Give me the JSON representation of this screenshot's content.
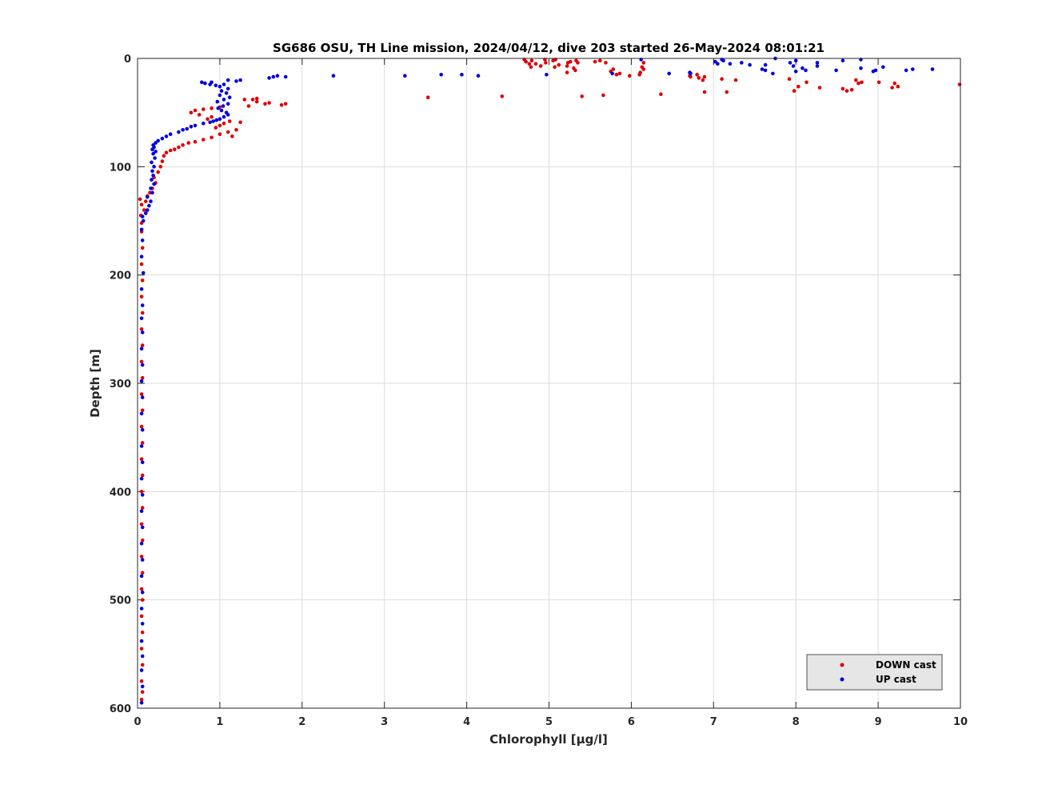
{
  "chart_data": {
    "type": "scatter",
    "title": "SG686 OSU, TH Line mission, 2024/04/12, dive 203 started 26-May-2024 08:01:21",
    "xlabel": "Chlorophyll [μg/l]",
    "ylabel": "Depth [m]",
    "xlim": [
      0,
      10
    ],
    "ylim": [
      0,
      600
    ],
    "y_reversed": true,
    "x_ticks": [
      0,
      1,
      2,
      3,
      4,
      5,
      6,
      7,
      8,
      9,
      10
    ],
    "y_ticks": [
      0,
      100,
      200,
      300,
      400,
      500,
      600
    ],
    "grid": true,
    "legend_position": "bottom-right",
    "series": [
      {
        "name": "DOWN cast",
        "color": "#e00000",
        "points": [
          [
            0.05,
            592
          ],
          [
            0.06,
            585
          ],
          [
            0.05,
            575
          ],
          [
            0.06,
            560
          ],
          [
            0.05,
            545
          ],
          [
            0.06,
            530
          ],
          [
            0.05,
            515
          ],
          [
            0.06,
            500
          ],
          [
            0.05,
            490
          ],
          [
            0.06,
            475
          ],
          [
            0.05,
            460
          ],
          [
            0.06,
            445
          ],
          [
            0.05,
            430
          ],
          [
            0.06,
            415
          ],
          [
            0.05,
            400
          ],
          [
            0.06,
            385
          ],
          [
            0.05,
            370
          ],
          [
            0.06,
            355
          ],
          [
            0.05,
            340
          ],
          [
            0.06,
            325
          ],
          [
            0.05,
            310
          ],
          [
            0.06,
            295
          ],
          [
            0.05,
            280
          ],
          [
            0.06,
            265
          ],
          [
            0.05,
            250
          ],
          [
            0.06,
            235
          ],
          [
            0.05,
            220
          ],
          [
            0.06,
            205
          ],
          [
            0.05,
            190
          ],
          [
            0.06,
            175
          ],
          [
            0.05,
            160
          ],
          [
            0.05,
            152
          ],
          [
            0.04,
            145
          ],
          [
            0.08,
            140
          ],
          [
            0.05,
            135
          ],
          [
            0.1,
            132
          ],
          [
            0.03,
            130
          ],
          [
            0.12,
            127
          ],
          [
            0.15,
            124
          ],
          [
            0.18,
            120
          ],
          [
            0.22,
            115
          ],
          [
            0.2,
            110
          ],
          [
            0.25,
            105
          ],
          [
            0.28,
            100
          ],
          [
            0.3,
            95
          ],
          [
            0.32,
            90
          ],
          [
            0.35,
            87
          ],
          [
            0.4,
            85
          ],
          [
            0.45,
            84
          ],
          [
            0.5,
            82
          ],
          [
            0.55,
            80
          ],
          [
            0.62,
            78
          ],
          [
            0.7,
            77
          ],
          [
            0.8,
            75
          ],
          [
            0.9,
            73
          ],
          [
            1.0,
            70
          ],
          [
            1.1,
            68
          ],
          [
            1.15,
            72
          ],
          [
            1.2,
            66
          ],
          [
            0.95,
            64
          ],
          [
            1.0,
            62
          ],
          [
            1.05,
            60
          ],
          [
            1.12,
            58
          ],
          [
            1.25,
            59
          ],
          [
            0.85,
            56
          ],
          [
            0.9,
            54
          ],
          [
            0.75,
            52
          ],
          [
            0.65,
            50
          ],
          [
            0.7,
            48
          ],
          [
            0.8,
            47
          ],
          [
            0.9,
            46
          ],
          [
            1.0,
            45
          ],
          [
            1.35,
            44
          ],
          [
            1.55,
            42
          ],
          [
            1.8,
            42
          ],
          [
            1.75,
            43
          ],
          [
            1.45,
            40
          ],
          [
            1.4,
            38
          ],
          [
            1.45,
            37
          ],
          [
            1.6,
            41
          ],
          [
            1.3,
            38
          ],
          [
            3.53,
            36
          ],
          [
            4.43,
            35
          ],
          [
            5.4,
            35
          ],
          [
            5.66,
            34
          ],
          [
            6.36,
            33
          ],
          [
            6.89,
            31
          ],
          [
            7.16,
            31
          ],
          [
            7.98,
            30
          ],
          [
            8.62,
            30
          ],
          [
            8.68,
            29
          ],
          [
            8.57,
            28
          ],
          [
            8.29,
            27
          ],
          [
            8.03,
            26
          ],
          [
            9.17,
            27
          ],
          [
            9.24,
            26
          ],
          [
            9.2,
            23
          ],
          [
            8.76,
            23
          ],
          [
            8.8,
            22
          ],
          [
            8.73,
            20
          ],
          [
            8.13,
            22
          ],
          [
            9.01,
            22
          ],
          [
            9.99,
            24
          ],
          [
            7.27,
            20
          ],
          [
            7.1,
            19
          ],
          [
            6.82,
            18
          ],
          [
            6.87,
            20
          ],
          [
            6.89,
            17
          ],
          [
            6.72,
            17
          ],
          [
            6.71,
            16
          ],
          [
            7.92,
            19
          ],
          [
            6.8,
            15
          ],
          [
            6.1,
            15
          ],
          [
            6.11,
            13
          ],
          [
            6.15,
            10
          ],
          [
            5.98,
            16
          ],
          [
            5.86,
            14
          ],
          [
            5.82,
            15
          ],
          [
            5.75,
            12
          ],
          [
            5.78,
            10
          ],
          [
            5.32,
            11
          ],
          [
            5.22,
            13
          ],
          [
            5.3,
            9
          ],
          [
            5.22,
            7
          ],
          [
            5.07,
            8
          ],
          [
            4.9,
            7
          ],
          [
            4.84,
            5
          ],
          [
            4.78,
            8
          ],
          [
            4.76,
            5
          ],
          [
            4.72,
            3
          ],
          [
            4.79,
            2
          ],
          [
            4.7,
            1
          ],
          [
            4.96,
            4
          ],
          [
            4.95,
            1
          ],
          [
            5.05,
            2
          ],
          [
            5.08,
            1
          ],
          [
            5.12,
            6
          ],
          [
            5.23,
            4
          ],
          [
            5.26,
            3
          ],
          [
            5.33,
            2
          ],
          [
            5.35,
            4
          ],
          [
            5.56,
            3
          ],
          [
            5.62,
            2
          ],
          [
            5.69,
            4
          ],
          [
            6.15,
            4
          ],
          [
            6.13,
            8
          ]
        ]
      },
      {
        "name": "UP cast",
        "color": "#0000e0",
        "points": [
          [
            0.05,
            595
          ],
          [
            0.06,
            580
          ],
          [
            0.05,
            565
          ],
          [
            0.06,
            552
          ],
          [
            0.05,
            538
          ],
          [
            0.06,
            522
          ],
          [
            0.05,
            508
          ],
          [
            0.06,
            493
          ],
          [
            0.05,
            478
          ],
          [
            0.06,
            463
          ],
          [
            0.05,
            448
          ],
          [
            0.06,
            433
          ],
          [
            0.05,
            418
          ],
          [
            0.06,
            403
          ],
          [
            0.05,
            388
          ],
          [
            0.06,
            373
          ],
          [
            0.05,
            358
          ],
          [
            0.06,
            343
          ],
          [
            0.05,
            328
          ],
          [
            0.06,
            313
          ],
          [
            0.05,
            298
          ],
          [
            0.06,
            283
          ],
          [
            0.05,
            268
          ],
          [
            0.06,
            253
          ],
          [
            0.05,
            240
          ],
          [
            0.06,
            228
          ],
          [
            0.05,
            213
          ],
          [
            0.07,
            198
          ],
          [
            0.05,
            183
          ],
          [
            0.06,
            168
          ],
          [
            0.05,
            158
          ],
          [
            0.07,
            150
          ],
          [
            0.06,
            146
          ],
          [
            0.1,
            143
          ],
          [
            0.12,
            140
          ],
          [
            0.14,
            136
          ],
          [
            0.16,
            132
          ],
          [
            0.12,
            128
          ],
          [
            0.18,
            124
          ],
          [
            0.16,
            120
          ],
          [
            0.2,
            116
          ],
          [
            0.17,
            112
          ],
          [
            0.19,
            108
          ],
          [
            0.18,
            104
          ],
          [
            0.2,
            100
          ],
          [
            0.17,
            96
          ],
          [
            0.21,
            92
          ],
          [
            0.19,
            88
          ],
          [
            0.22,
            86
          ],
          [
            0.18,
            84
          ],
          [
            0.2,
            82
          ],
          [
            0.19,
            80
          ],
          [
            0.22,
            78
          ],
          [
            0.25,
            76
          ],
          [
            0.3,
            74
          ],
          [
            0.35,
            72
          ],
          [
            0.4,
            70
          ],
          [
            0.5,
            68
          ],
          [
            0.55,
            66
          ],
          [
            0.6,
            65
          ],
          [
            0.65,
            63
          ],
          [
            0.7,
            62
          ],
          [
            0.8,
            60
          ],
          [
            0.88,
            59
          ],
          [
            0.92,
            58
          ],
          [
            0.96,
            57
          ],
          [
            1.0,
            56
          ],
          [
            1.05,
            54
          ],
          [
            1.1,
            52
          ],
          [
            1.08,
            50
          ],
          [
            1.02,
            48
          ],
          [
            0.98,
            46
          ],
          [
            1.04,
            44
          ],
          [
            1.1,
            42
          ],
          [
            0.97,
            40
          ],
          [
            1.05,
            38
          ],
          [
            1.12,
            36
          ],
          [
            1.0,
            34
          ],
          [
            1.08,
            32
          ],
          [
            1.02,
            30
          ],
          [
            1.1,
            28
          ],
          [
            1.0,
            26
          ],
          [
            0.95,
            25
          ],
          [
            1.05,
            24
          ],
          [
            0.82,
            23
          ],
          [
            0.78,
            22
          ],
          [
            0.9,
            22
          ],
          [
            0.88,
            24
          ],
          [
            1.2,
            21
          ],
          [
            1.25,
            20
          ],
          [
            1.1,
            20
          ],
          [
            1.6,
            18
          ],
          [
            1.65,
            17
          ],
          [
            1.7,
            16
          ],
          [
            1.8,
            17
          ],
          [
            2.38,
            16
          ],
          [
            3.25,
            16
          ],
          [
            3.69,
            15
          ],
          [
            3.94,
            15
          ],
          [
            4.14,
            16
          ],
          [
            4.97,
            15
          ],
          [
            5.77,
            14
          ],
          [
            6.46,
            14
          ],
          [
            6.72,
            14
          ],
          [
            6.71,
            13
          ],
          [
            7.59,
            10
          ],
          [
            7.63,
            11
          ],
          [
            7.72,
            14
          ],
          [
            8.08,
            9
          ],
          [
            8.12,
            11
          ],
          [
            8.0,
            12
          ],
          [
            8.26,
            7
          ],
          [
            8.49,
            11
          ],
          [
            8.79,
            9
          ],
          [
            8.94,
            12
          ],
          [
            8.97,
            11
          ],
          [
            9.06,
            8
          ],
          [
            9.34,
            11
          ],
          [
            9.42,
            10
          ],
          [
            9.66,
            10
          ],
          [
            7.05,
            5
          ],
          [
            7.02,
            3
          ],
          [
            7.12,
            2
          ],
          [
            7.2,
            5
          ],
          [
            7.34,
            4
          ],
          [
            7.44,
            6
          ],
          [
            7.63,
            6
          ],
          [
            7.75,
            0
          ],
          [
            7.93,
            4
          ],
          [
            7.97,
            7
          ],
          [
            8.26,
            4
          ],
          [
            8.57,
            2
          ],
          [
            8.79,
            1
          ],
          [
            8.0,
            2
          ],
          [
            7.1,
            1
          ],
          [
            6.12,
            1
          ]
        ]
      }
    ]
  }
}
